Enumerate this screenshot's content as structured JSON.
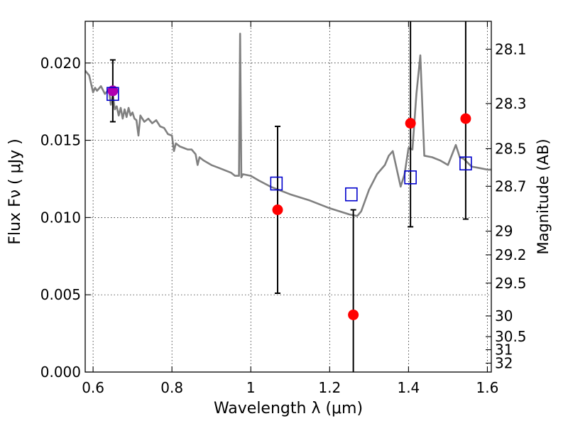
{
  "chart_data": {
    "type": "scatter",
    "xlabel": "Wavelength  λ (μm)",
    "ylabel": "Flux  Fν  ( μJy )",
    "y2label": "Magnitude (AB)",
    "xlim": [
      0.58,
      1.61
    ],
    "ylim": [
      0.0,
      0.0227
    ],
    "x_ticks": [
      0.6,
      0.8,
      1.0,
      1.2,
      1.4,
      1.6
    ],
    "x_tick_labels": [
      "0.6",
      "0.8",
      "1",
      "1.2",
      "1.4",
      "1.6"
    ],
    "y_ticks": [
      0.0,
      0.005,
      0.01,
      0.015,
      0.02
    ],
    "y_tick_labels": [
      "0.000",
      "0.005",
      "0.010",
      "0.015",
      "0.020"
    ],
    "mag_ticks": [
      "28.1",
      "28.3",
      "28.5",
      "28.7",
      "29",
      "29.2",
      "29.5",
      "30",
      "30.5",
      "31",
      "32"
    ],
    "grid": true,
    "colors": {
      "model": "#808080",
      "observed": "#ff0000",
      "synthetic": "#0000cc",
      "error_bar": "#000000",
      "overlap": "#b000b0"
    },
    "model_spectrum": {
      "x": [
        0.58,
        0.59,
        0.6,
        0.605,
        0.61,
        0.62,
        0.63,
        0.64,
        0.645,
        0.65,
        0.655,
        0.66,
        0.665,
        0.67,
        0.675,
        0.68,
        0.685,
        0.69,
        0.695,
        0.7,
        0.705,
        0.71,
        0.715,
        0.72,
        0.73,
        0.74,
        0.75,
        0.76,
        0.77,
        0.78,
        0.79,
        0.8,
        0.805,
        0.81,
        0.82,
        0.83,
        0.84,
        0.85,
        0.86,
        0.865,
        0.87,
        0.88,
        0.9,
        0.92,
        0.94,
        0.95,
        0.96,
        0.97,
        0.973,
        0.976,
        0.98,
        1.0,
        1.02,
        1.05,
        1.1,
        1.15,
        1.2,
        1.25,
        1.27,
        1.28,
        1.3,
        1.32,
        1.34,
        1.35,
        1.36,
        1.38,
        1.39,
        1.4,
        1.41,
        1.42,
        1.43,
        1.44,
        1.46,
        1.48,
        1.5,
        1.52,
        1.53,
        1.54,
        1.56,
        1.58,
        1.6,
        1.61
      ],
      "y": [
        0.0195,
        0.0192,
        0.0181,
        0.0184,
        0.0182,
        0.0185,
        0.018,
        0.0183,
        0.0173,
        0.018,
        0.017,
        0.0172,
        0.0166,
        0.0171,
        0.0164,
        0.017,
        0.0165,
        0.0171,
        0.0166,
        0.0168,
        0.0164,
        0.0163,
        0.0153,
        0.0166,
        0.0162,
        0.0164,
        0.0161,
        0.0163,
        0.0159,
        0.0158,
        0.0154,
        0.0153,
        0.0143,
        0.0148,
        0.0146,
        0.0145,
        0.0144,
        0.0144,
        0.0141,
        0.0134,
        0.0139,
        0.0137,
        0.0134,
        0.0132,
        0.013,
        0.0129,
        0.0127,
        0.0127,
        0.0219,
        0.0126,
        0.0128,
        0.0127,
        0.0124,
        0.012,
        0.0115,
        0.0111,
        0.0106,
        0.0102,
        0.0101,
        0.0104,
        0.0118,
        0.0128,
        0.0134,
        0.014,
        0.0143,
        0.012,
        0.0128,
        0.0145,
        0.0144,
        0.018,
        0.0205,
        0.014,
        0.0139,
        0.0137,
        0.0134,
        0.0147,
        0.0139,
        0.0138,
        0.0133,
        0.0132,
        0.0131,
        0.0131
      ]
    },
    "observed": [
      {
        "x": 0.65,
        "y": 0.0182,
        "err": 0.002
      },
      {
        "x": 1.068,
        "y": 0.0105,
        "err": 0.0054
      },
      {
        "x": 1.26,
        "y": 0.0037,
        "err": 0.0068
      },
      {
        "x": 1.405,
        "y": 0.0161,
        "err": 0.0067
      },
      {
        "x": 1.545,
        "y": 0.0164,
        "err": 0.0065
      }
    ],
    "synthetic": [
      {
        "x": 0.65,
        "y": 0.018
      },
      {
        "x": 1.065,
        "y": 0.0122
      },
      {
        "x": 1.255,
        "y": 0.0115
      },
      {
        "x": 1.405,
        "y": 0.0126
      },
      {
        "x": 1.545,
        "y": 0.0135
      }
    ]
  }
}
